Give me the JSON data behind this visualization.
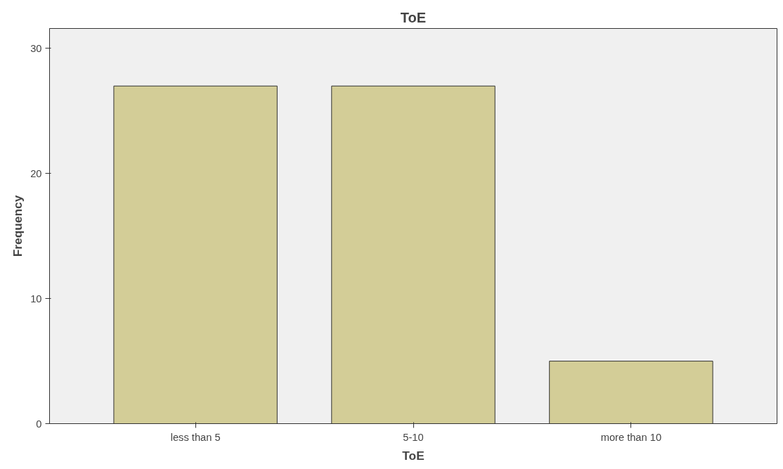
{
  "chart_data": {
    "type": "bar",
    "title": "ToE",
    "xlabel": "ToE",
    "ylabel": "Frequency",
    "categories": [
      "less than 5",
      "5-10",
      "more than 10"
    ],
    "values": [
      27,
      27,
      5
    ],
    "color": "#d3cd97",
    "ylim": [
      0,
      31.6
    ],
    "yticks": [
      0,
      10,
      20,
      30
    ],
    "grid": false
  }
}
